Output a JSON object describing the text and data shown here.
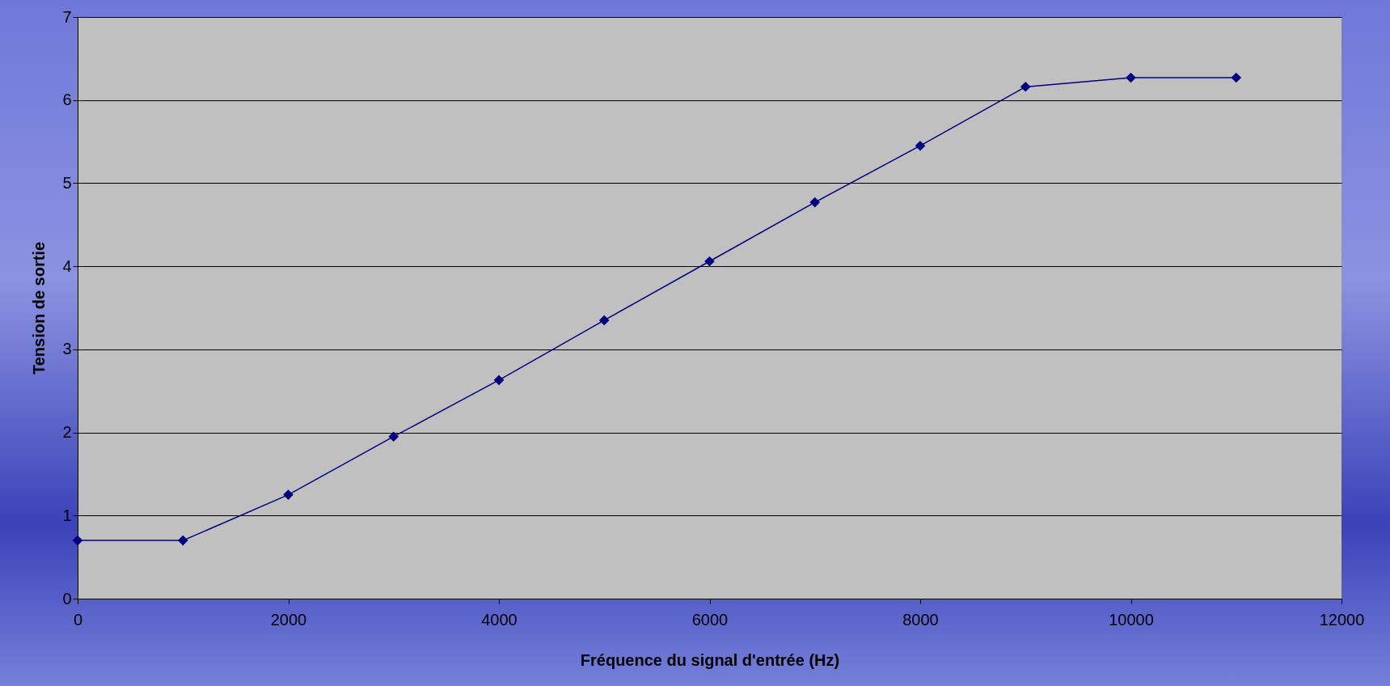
{
  "chart_data": {
    "type": "line",
    "xlabel": "Fréquence du signal d'entrée (Hz)",
    "ylabel": "Tension de sortie",
    "x": [
      0,
      1000,
      2000,
      3000,
      4000,
      5000,
      6000,
      7000,
      8000,
      9000,
      10000,
      11000
    ],
    "series": [
      {
        "color": "#000080",
        "values": [
          0.7,
          0.7,
          1.25,
          1.95,
          2.63,
          3.35,
          4.06,
          4.77,
          5.45,
          6.16,
          6.27,
          6.27
        ]
      }
    ],
    "xlim": [
      0,
      12000
    ],
    "xticks": [
      0,
      2000,
      4000,
      6000,
      8000,
      10000,
      12000
    ],
    "ylim": [
      0,
      7
    ],
    "yticks": [
      0,
      1,
      2,
      3,
      4,
      5,
      6,
      7
    ],
    "grid": "y",
    "marker": "diamond",
    "line_style": "solid"
  }
}
